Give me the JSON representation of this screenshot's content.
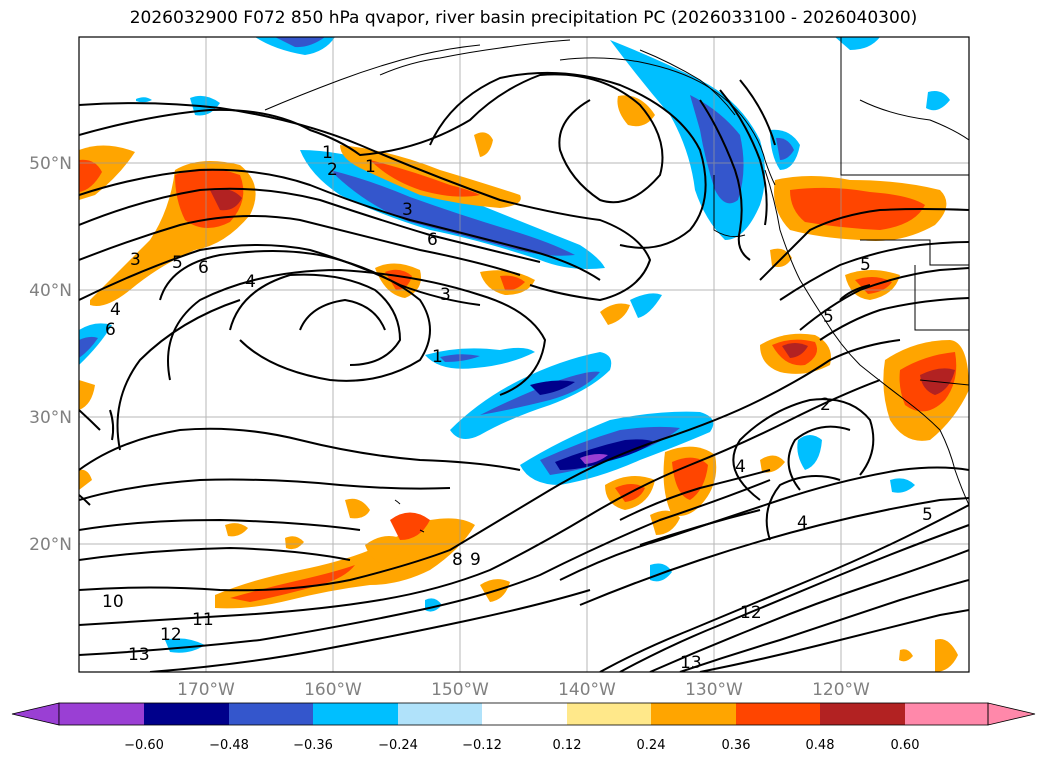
{
  "title": "2026032900 F072 850 hPa qvapor, river basin precipitation PC (2026033100 - 2026040300)",
  "map": {
    "lon_labels": [
      "170°W",
      "160°W",
      "150°W",
      "140°W",
      "130°W",
      "120°W"
    ],
    "lat_labels": [
      "50°N",
      "40°N",
      "30°N",
      "20°N"
    ],
    "contour_labels": [
      "1",
      "2",
      "3",
      "4",
      "5",
      "6",
      "8",
      "9",
      "10",
      "11",
      "12",
      "13"
    ]
  },
  "colorbar": {
    "tick_labels": [
      "−0.60",
      "−0.48",
      "−0.36",
      "−0.24",
      "−0.12",
      "0.12",
      "0.24",
      "0.36",
      "0.48",
      "0.60"
    ],
    "colors": [
      "#9a3fd4",
      "#00008b",
      "#3456cc",
      "#00bfff",
      "#b0e2fa",
      "#ffffff",
      "#ffe88a",
      "#ffa500",
      "#ff4500",
      "#b22222",
      "#ff88aa"
    ]
  },
  "colors": {
    "neg_extreme": "#8a2be2",
    "neg_strong": "#00008b",
    "neg_mid": "#3456cc",
    "neg_weak": "#00bfff",
    "neg_faint": "#b0e2fa",
    "pos_faint": "#ffe88a",
    "pos_weak": "#ffa500",
    "pos_mid": "#ff4500",
    "pos_strong": "#b22222",
    "pos_extreme": "#ff88aa"
  }
}
